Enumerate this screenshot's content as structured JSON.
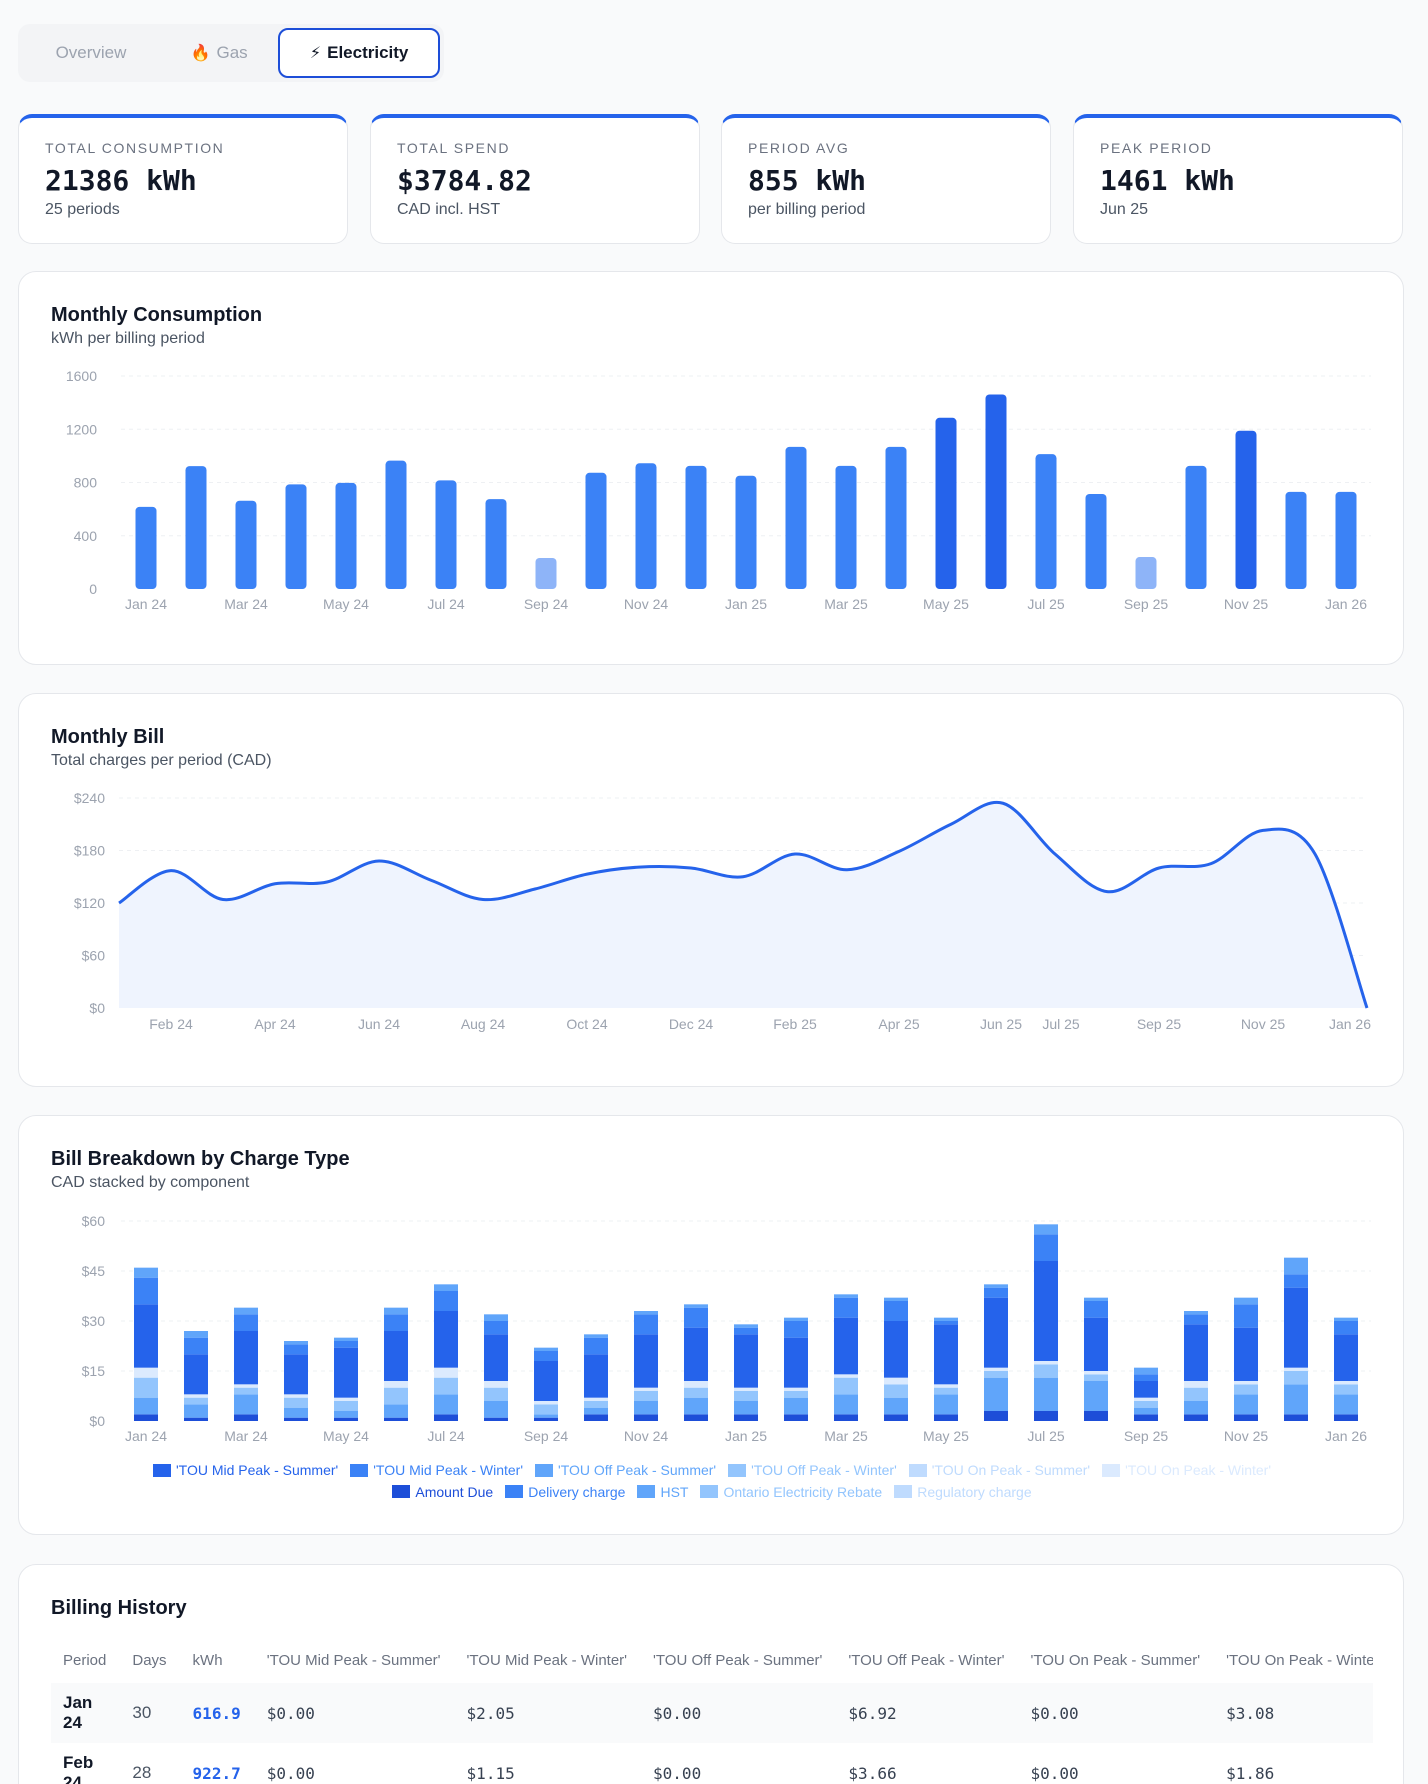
{
  "tabs": [
    {
      "label": "Overview",
      "icon": "",
      "active": false
    },
    {
      "label": "Gas",
      "icon": "🔥",
      "active": false
    },
    {
      "label": "Electricity",
      "icon": "⚡",
      "active": true
    }
  ],
  "stats": [
    {
      "label": "TOTAL CONSUMPTION",
      "value": "21386 kWh",
      "sub": "25 periods"
    },
    {
      "label": "TOTAL SPEND",
      "value": "$3784.82",
      "sub": "CAD incl. HST"
    },
    {
      "label": "PERIOD AVG",
      "value": "855 kWh",
      "sub": "per billing period"
    },
    {
      "label": "PEAK PERIOD",
      "value": "1461 kWh",
      "sub": "Jun 25"
    }
  ],
  "consumption": {
    "title": "Monthly Consumption",
    "subtitle": "kWh per billing period",
    "chart_data": {
      "type": "bar",
      "categories": [
        "Jan 24",
        "Feb 24",
        "Mar 24",
        "Apr 24",
        "May 24",
        "Jun 24",
        "Jul 24",
        "Aug 24",
        "Sep 24",
        "Oct 24",
        "Nov 24",
        "Dec 24",
        "Jan 25",
        "Feb 25",
        "Mar 25",
        "Apr 25",
        "May 25",
        "Jun 25",
        "Jul 25",
        "Aug 25",
        "Sep 25",
        "Oct 25",
        "Nov 25",
        "Dec 25",
        "Jan 26"
      ],
      "x_tick_labels": [
        "Jan 24",
        "Mar 24",
        "May 24",
        "Jul 24",
        "Sep 24",
        "Nov 24",
        "Jan 25",
        "Mar 25",
        "May 25",
        "Jul 25",
        "Sep 25",
        "Nov 25",
        "Jan 26"
      ],
      "values": [
        617,
        923,
        663,
        786,
        797,
        964,
        816,
        675,
        233,
        873,
        945,
        925,
        851,
        1068,
        925,
        1068,
        1286,
        1461,
        1013,
        714,
        240,
        925,
        1189,
        730,
        730
      ],
      "yticks": [
        0,
        400,
        800,
        1200,
        1600
      ],
      "ylim": [
        0,
        1600
      ],
      "colors": {
        "normal": "#3b82f6",
        "high": "#2563eb",
        "low": "#8eb4f8"
      }
    }
  },
  "bill": {
    "title": "Monthly Bill",
    "subtitle": "Total charges per period (CAD)",
    "chart_data": {
      "type": "area",
      "x": [
        "Jan 24",
        "Feb 24",
        "Mar 24",
        "Apr 24",
        "May 24",
        "Jun 24",
        "Jul 24",
        "Aug 24",
        "Sep 24",
        "Oct 24",
        "Nov 24",
        "Dec 24",
        "Jan 25",
        "Feb 25",
        "Mar 25",
        "Apr 25",
        "May 25",
        "Jun 25",
        "Jul 25",
        "Aug 25",
        "Sep 25",
        "Oct 25",
        "Nov 25",
        "Dec 25",
        "Jan 26"
      ],
      "x_tick_labels": [
        "Feb 24",
        "Apr 24",
        "Jun 24",
        "Aug 24",
        "Oct 24",
        "Dec 24",
        "Feb 25",
        "Apr 25",
        "Jun 25",
        "Jul 25",
        "Sep 25",
        "Nov 25",
        "Jan 26"
      ],
      "values": [
        120,
        157,
        124,
        142,
        144,
        168,
        146,
        124,
        136,
        153,
        161,
        160,
        150,
        176,
        158,
        179,
        210,
        234,
        176,
        133,
        160,
        165,
        203,
        176,
        0
      ],
      "yticks": [
        "$0",
        "$60",
        "$120",
        "$180",
        "$240"
      ],
      "ylim": [
        0,
        240
      ],
      "color": "#2563eb"
    }
  },
  "breakdown": {
    "title": "Bill Breakdown by Charge Type",
    "subtitle": "CAD stacked by component",
    "chart_data": {
      "type": "bar",
      "stacked": true,
      "x_tick_labels": [
        "Jan 24",
        "Mar 24",
        "May 24",
        "Jul 24",
        "Sep 24",
        "Nov 24",
        "Jan 25",
        "Mar 25",
        "May 25",
        "Jul 25",
        "Sep 25",
        "Nov 25",
        "Jan 26"
      ],
      "yticks": [
        "$0",
        "$15",
        "$30",
        "$45",
        "$60"
      ],
      "ylim": [
        0,
        60
      ],
      "series_names": [
        "'TOU Mid Peak - Summer'",
        "'TOU Mid Peak - Winter'",
        "'TOU Off Peak - Summer'",
        "'TOU Off Peak - Winter'",
        "'TOU On Peak - Summer'",
        "'TOU On Peak - Winter'",
        "Amount Due",
        "Delivery charge",
        "HST",
        "Ontario Electricity Rebate",
        "Regulatory charge"
      ],
      "series_colors": [
        "#2563eb",
        "#3b82f6",
        "#60a5fa",
        "#93c5fd",
        "#bfdbfe",
        "#dbeafe",
        "#1d4ed8",
        "#3b82f6",
        "#60a5fa",
        "#93c5fd",
        "#bfdbfe"
      ],
      "series_text_colors": [
        "#2563eb",
        "#3b82f6",
        "#60a5fa",
        "#93c5fd",
        "#bfdbfe",
        "#dbeafe",
        "#1d4ed8",
        "#3b82f6",
        "#60a5fa",
        "#93c5fd",
        "#bfdbfe"
      ],
      "stack_colors": [
        "#1d4ed8",
        "#60a5fa",
        "#93c5fd",
        "#dbeafe",
        "#2563eb",
        "#3b82f6",
        "#60a5fa"
      ],
      "stacks": [
        [
          2,
          5,
          6,
          3,
          19,
          8,
          3
        ],
        [
          1,
          4,
          2,
          1,
          12,
          5,
          2
        ],
        [
          2,
          6,
          2,
          1,
          16,
          5,
          2
        ],
        [
          1,
          3,
          3,
          1,
          12,
          3,
          1
        ],
        [
          1,
          2,
          3,
          1,
          15,
          2,
          1
        ],
        [
          1,
          4,
          5,
          2,
          15,
          5,
          2
        ],
        [
          2,
          6,
          5,
          3,
          17,
          6,
          2
        ],
        [
          1,
          5,
          4,
          2,
          14,
          4,
          2
        ],
        [
          1,
          1,
          3,
          1,
          12,
          3,
          1
        ],
        [
          2,
          2,
          2,
          1,
          13,
          5,
          1
        ],
        [
          2,
          4,
          3,
          1,
          16,
          6,
          1
        ],
        [
          2,
          5,
          3,
          2,
          16,
          6,
          1
        ],
        [
          2,
          4,
          3,
          1,
          16,
          2,
          1
        ],
        [
          2,
          5,
          2,
          1,
          15,
          5,
          1
        ],
        [
          2,
          6,
          5,
          1,
          17,
          6,
          1
        ],
        [
          2,
          5,
          4,
          2,
          17,
          6,
          1
        ],
        [
          2,
          6,
          2,
          1,
          18,
          1,
          1
        ],
        [
          3,
          10,
          2,
          1,
          21,
          3,
          1
        ],
        [
          3,
          10,
          4,
          1,
          30,
          8,
          3
        ],
        [
          3,
          9,
          2,
          1,
          16,
          5,
          1
        ],
        [
          2,
          2,
          2,
          1,
          5,
          2,
          2
        ],
        [
          2,
          4,
          4,
          2,
          17,
          3,
          1
        ],
        [
          2,
          6,
          3,
          1,
          16,
          7,
          2
        ],
        [
          2,
          9,
          4,
          1,
          24,
          4,
          5
        ],
        [
          2,
          6,
          3,
          1,
          14,
          4,
          1
        ]
      ]
    }
  },
  "history": {
    "title": "Billing History",
    "columns": [
      "Period",
      "Days",
      "kWh",
      "'TOU Mid Peak - Summer'",
      "'TOU Mid Peak - Winter'",
      "'TOU Off Peak - Summer'",
      "'TOU Off Peak - Winter'",
      "'TOU On Peak - Summer'",
      "'TOU On Peak - Winter'"
    ],
    "rows": [
      {
        "period": "Jan 24",
        "days": "30",
        "kwh": "616.9",
        "c1": "$0.00",
        "c2": "$2.05",
        "c3": "$0.00",
        "c4": "$6.92",
        "c5": "$0.00",
        "c6": "$3.08"
      },
      {
        "period": "Feb 24",
        "days": "28",
        "kwh": "922.7",
        "c1": "$0.00",
        "c2": "$1.15",
        "c3": "$0.00",
        "c4": "$3.66",
        "c5": "$0.00",
        "c6": "$1.86"
      }
    ]
  }
}
